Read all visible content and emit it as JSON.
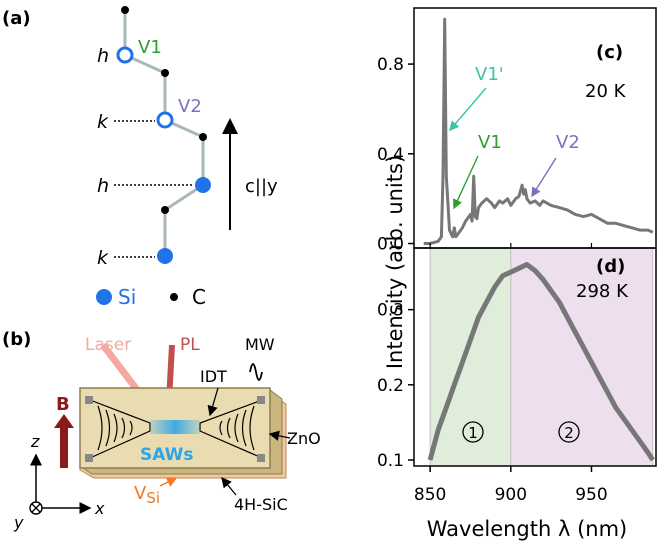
{
  "panel_a": {
    "label": "(a)",
    "site_labels": [
      "h",
      "k",
      "h",
      "k"
    ],
    "vacancy_labels": {
      "v1": "V1",
      "v2": "V2"
    },
    "axis_label": "c||y",
    "legend": {
      "si": "Si",
      "c": "C"
    }
  },
  "panel_b": {
    "label": "(b)",
    "laser": "Laser",
    "pl": "PL",
    "mw": "MW",
    "idt": "IDT",
    "b_field": "B",
    "saws": "SAWs",
    "zno": "ZnO",
    "substrate": "4H-SiC",
    "vsi_main": "V",
    "vsi_sub": "Si",
    "axes": {
      "z": "z",
      "y": "y",
      "x": "x"
    }
  },
  "panel_c": {
    "label": "(c)",
    "temperature": "20 K",
    "annotations": {
      "v1p": "V1'",
      "v1": "V1",
      "v2": "V2"
    },
    "yticks": [
      "0.8",
      "0.4",
      "0.0"
    ]
  },
  "panel_d": {
    "label": "(d)",
    "temperature": "298 K",
    "yticks": [
      "0.3",
      "0.2",
      "0.1"
    ],
    "regions": [
      "1",
      "2"
    ]
  },
  "shared_axes": {
    "ylabel": "Intensity (arb. units)",
    "xlabel": "Wavelength λ (nm)",
    "xticks": [
      "850",
      "900",
      "950"
    ]
  },
  "chart_data": [
    {
      "type": "line",
      "panel": "c",
      "x": [
        846,
        850,
        855,
        857,
        858,
        859,
        860,
        862,
        864,
        865,
        866,
        868,
        870,
        872,
        874,
        875,
        876,
        877,
        878,
        879,
        880,
        882,
        885,
        888,
        890,
        893,
        895,
        898,
        900,
        903,
        905,
        907,
        908,
        909,
        910,
        912,
        915,
        918,
        920,
        925,
        930,
        935,
        940,
        945,
        950,
        955,
        960,
        965,
        970,
        975,
        980,
        985,
        988
      ],
      "y": [
        0.0,
        0.0,
        0.01,
        0.03,
        0.3,
        1.0,
        0.3,
        0.06,
        0.03,
        0.07,
        0.03,
        0.05,
        0.07,
        0.1,
        0.12,
        0.13,
        0.1,
        0.3,
        0.12,
        0.11,
        0.16,
        0.18,
        0.2,
        0.18,
        0.16,
        0.19,
        0.18,
        0.2,
        0.17,
        0.2,
        0.21,
        0.26,
        0.22,
        0.24,
        0.2,
        0.18,
        0.19,
        0.17,
        0.19,
        0.17,
        0.16,
        0.15,
        0.13,
        0.12,
        0.13,
        0.11,
        0.09,
        0.09,
        0.08,
        0.07,
        0.06,
        0.06,
        0.05
      ],
      "xlim": [
        840,
        990
      ],
      "ylim": [
        -0.02,
        1.05
      ],
      "yticks": [
        0.0,
        0.4,
        0.8
      ]
    },
    {
      "type": "line",
      "panel": "d",
      "x": [
        850,
        855,
        860,
        865,
        870,
        875,
        880,
        885,
        890,
        895,
        900,
        905,
        910,
        915,
        920,
        925,
        930,
        935,
        940,
        945,
        950,
        955,
        960,
        965,
        970,
        975,
        980,
        985,
        988
      ],
      "y": [
        0.1,
        0.14,
        0.17,
        0.2,
        0.23,
        0.26,
        0.29,
        0.31,
        0.33,
        0.345,
        0.35,
        0.355,
        0.36,
        0.352,
        0.34,
        0.325,
        0.31,
        0.29,
        0.27,
        0.25,
        0.23,
        0.21,
        0.19,
        0.17,
        0.155,
        0.14,
        0.125,
        0.11,
        0.1
      ],
      "xlim": [
        840,
        990
      ],
      "ylim": [
        0.092,
        0.382
      ],
      "yticks": [
        0.1,
        0.2,
        0.3
      ],
      "shaded_regions": [
        {
          "label": "1",
          "x": [
            850,
            900
          ],
          "color": "#d9ead3"
        },
        {
          "label": "2",
          "x": [
            900,
            988
          ],
          "color": "#ead9ea"
        }
      ]
    }
  ],
  "colors": {
    "green": "#2ca02c",
    "purple": "#7f6fbf",
    "teal": "#38c6a6",
    "si_blue": "#1e73e8",
    "trace": "#777777",
    "laser": "#f4a9a0",
    "pl": "#c0504d",
    "b_arrow": "#8b1a1a",
    "orange": "#f47920",
    "saw": "#2da6e8",
    "device_top": "#e8dcb0",
    "device_side": "#c9b77f"
  }
}
